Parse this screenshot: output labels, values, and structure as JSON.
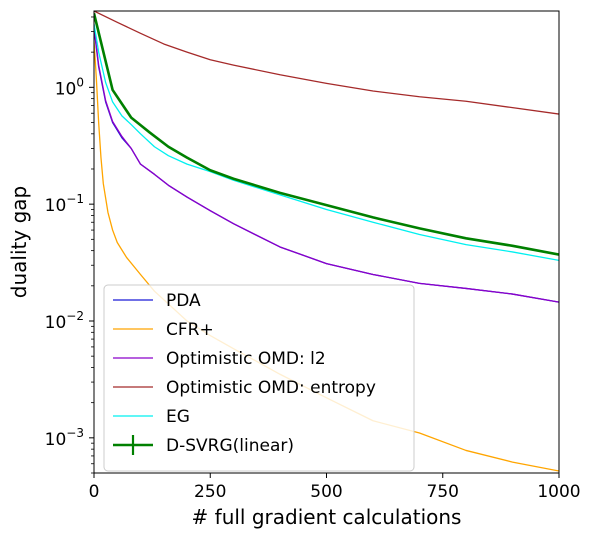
{
  "chart_data": {
    "type": "line",
    "title": "",
    "xlabel": "# full gradient calculations",
    "ylabel": "duality gap",
    "xlim": [
      0,
      1000
    ],
    "ylim": [
      0.0005,
      4.5
    ],
    "y_scale": "log",
    "grid": false,
    "legend_position": "lower-left",
    "x_ticks": [
      {
        "value": 0,
        "label": "0"
      },
      {
        "value": 250,
        "label": "250"
      },
      {
        "value": 500,
        "label": "500"
      },
      {
        "value": 750,
        "label": "750"
      },
      {
        "value": 1000,
        "label": "1000"
      }
    ],
    "y_ticks": [
      {
        "value": 1,
        "base": "10",
        "exp": "0"
      },
      {
        "value": 0.1,
        "base": "10",
        "exp": "−1"
      },
      {
        "value": 0.01,
        "base": "10",
        "exp": "−2"
      },
      {
        "value": 0.001,
        "base": "10",
        "exp": "−3"
      }
    ],
    "series": [
      {
        "name": "PDA",
        "color": "#1a1ad6",
        "width": 1.3,
        "marker": "line",
        "x": [
          0,
          10,
          25,
          40,
          60,
          80,
          100,
          130,
          160,
          200,
          250,
          300,
          400,
          500,
          600,
          700,
          800,
          900,
          1000
        ],
        "y": [
          3.2,
          1.5,
          0.75,
          0.5,
          0.37,
          0.3,
          0.22,
          0.18,
          0.145,
          0.115,
          0.088,
          0.068,
          0.043,
          0.031,
          0.025,
          0.021,
          0.019,
          0.017,
          0.0145
        ]
      },
      {
        "name": "CFR+",
        "color": "#ffa500",
        "width": 1.3,
        "marker": "line",
        "x": [
          0,
          5,
          10,
          15,
          20,
          30,
          40,
          50,
          70,
          100,
          130,
          160,
          200,
          250,
          300,
          400,
          500,
          600,
          700,
          800,
          900,
          1000
        ],
        "y": [
          2.5,
          1.2,
          0.5,
          0.25,
          0.15,
          0.085,
          0.06,
          0.047,
          0.035,
          0.025,
          0.018,
          0.014,
          0.01,
          0.0075,
          0.0058,
          0.0035,
          0.0022,
          0.0014,
          0.0011,
          0.00078,
          0.00062,
          0.00052
        ]
      },
      {
        "name": "Optimistic OMD: l2",
        "color": "#8b00c9",
        "width": 1.3,
        "marker": "line",
        "x": [
          0,
          10,
          25,
          40,
          60,
          80,
          100,
          130,
          160,
          200,
          250,
          300,
          400,
          500,
          600,
          700,
          800,
          900,
          1000
        ],
        "y": [
          3.3,
          1.55,
          0.77,
          0.51,
          0.38,
          0.3,
          0.22,
          0.18,
          0.145,
          0.115,
          0.088,
          0.068,
          0.043,
          0.031,
          0.025,
          0.021,
          0.019,
          0.017,
          0.0145
        ]
      },
      {
        "name": "Optimistic OMD: entropy",
        "color": "#a52a2a",
        "width": 1.3,
        "marker": "line",
        "x": [
          0,
          50,
          100,
          150,
          200,
          250,
          300,
          400,
          500,
          600,
          700,
          800,
          900,
          1000
        ],
        "y": [
          4.5,
          3.6,
          2.9,
          2.35,
          2.0,
          1.72,
          1.55,
          1.28,
          1.08,
          0.93,
          0.83,
          0.76,
          0.67,
          0.59
        ]
      },
      {
        "name": "EG",
        "color": "#00f0f0",
        "width": 1.3,
        "marker": "line",
        "x": [
          0,
          10,
          25,
          40,
          60,
          80,
          100,
          130,
          160,
          200,
          250,
          300,
          400,
          500,
          600,
          700,
          800,
          900,
          1000
        ],
        "y": [
          3.5,
          2.0,
          1.1,
          0.75,
          0.57,
          0.48,
          0.4,
          0.31,
          0.26,
          0.22,
          0.19,
          0.16,
          0.12,
          0.09,
          0.07,
          0.055,
          0.045,
          0.039,
          0.033
        ]
      },
      {
        "name": "D-SVRG(linear)",
        "color": "#008000",
        "width": 2.6,
        "marker": "errorbar",
        "x": [
          0,
          40,
          80,
          120,
          160,
          200,
          250,
          300,
          400,
          500,
          600,
          700,
          800,
          900,
          1000
        ],
        "y": [
          4.3,
          0.95,
          0.55,
          0.41,
          0.31,
          0.25,
          0.195,
          0.165,
          0.125,
          0.098,
          0.077,
          0.062,
          0.051,
          0.044,
          0.037
        ]
      }
    ]
  }
}
